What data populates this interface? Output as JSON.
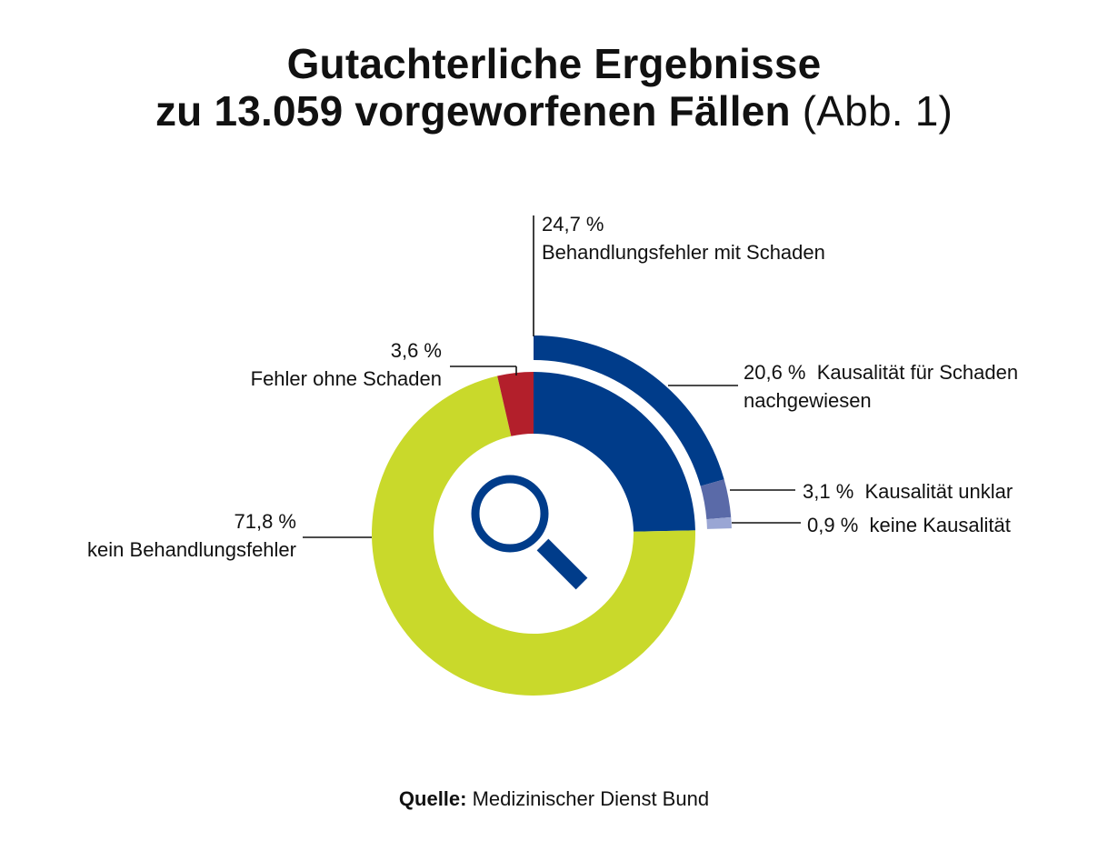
{
  "title": {
    "line1": "Gutachterliche Ergebnisse",
    "line2": "zu 13.059 vorgeworfenen Fällen",
    "note": "(Abb. 1)"
  },
  "source": {
    "label": "Quelle:",
    "text": "Medizinischer Dienst Bund"
  },
  "chart_data": {
    "type": "pie",
    "title": "Gutachterliche Ergebnisse zu 13.059 vorgeworfenen Fällen (Abb. 1)",
    "total_cases": 13059,
    "inner_ring": [
      {
        "id": "mit-schaden",
        "value": 24.7,
        "value_label": "24,7 %",
        "label": "Behandlungsfehler mit Schaden",
        "color": "#003c8a"
      },
      {
        "id": "kein-fehler",
        "value": 71.8,
        "value_label": "71,8 %",
        "label": "kein Behandlungsfehler",
        "color": "#c9d92b"
      },
      {
        "id": "ohne-schaden",
        "value": 3.6,
        "value_label": "3,6 %",
        "label": "Fehler ohne Schaden",
        "color": "#b31f2b"
      }
    ],
    "outer_ring_breakdown_of": "mit-schaden",
    "outer_ring": [
      {
        "id": "kausal-nachgewiesen",
        "value": 20.6,
        "value_label": "20,6 %",
        "label": "Kausalität für Schaden nachgewiesen",
        "label_lines": [
          "Kausalität für Schaden",
          "nachgewiesen"
        ],
        "color": "#003c8a"
      },
      {
        "id": "kausal-unklar",
        "value": 3.1,
        "value_label": "3,1 %",
        "label": "Kausalität unklar",
        "color": "#5a6aa8"
      },
      {
        "id": "keine-kausal",
        "value": 0.9,
        "value_label": "0,9 %",
        "label": "keine Kausalität",
        "color": "#9aa6d4"
      }
    ],
    "center_icon": "magnifier-icon",
    "icon_color": "#003c8a"
  }
}
